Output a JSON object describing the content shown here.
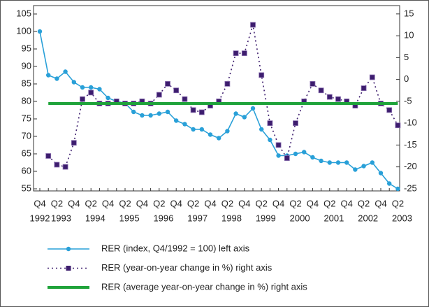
{
  "chart_data": {
    "type": "line",
    "categories": [
      "Q4",
      null,
      "Q2",
      null,
      "Q4",
      null,
      "Q2",
      null,
      "Q4",
      null,
      "Q2",
      null,
      "Q4",
      null,
      "Q2",
      null,
      "Q4",
      null,
      "Q2",
      null,
      "Q4",
      null,
      "Q2",
      null,
      "Q4",
      null,
      "Q2",
      null,
      "Q4",
      null,
      "Q2",
      null,
      "Q4",
      null,
      "Q2",
      null,
      "Q4",
      null,
      "Q2",
      null,
      "Q4",
      null,
      "Q2"
    ],
    "year_labels": [
      "1992",
      "1993",
      "1994",
      "1995",
      "1996",
      "1997",
      "1998",
      "1999",
      "2000",
      "2001",
      "2002",
      "2003"
    ],
    "ylim": [
      54.4,
      107.4
    ],
    "yticks": [
      55,
      60,
      65,
      70,
      75,
      80,
      85,
      90,
      95,
      100,
      105
    ],
    "y2lim": [
      -25.5,
      16.9
    ],
    "y2ticks": [
      -25,
      -20,
      -15,
      -10,
      -5,
      0,
      5,
      10,
      15
    ],
    "series": [
      {
        "name": "RER (index, Q4/1992 = 100) left axis",
        "color": "#29a0d8",
        "marker": "circle",
        "axis": "y",
        "values": [
          100,
          87.5,
          86.5,
          88.5,
          85.5,
          84,
          84,
          83.5,
          81,
          80,
          79.5,
          77,
          76,
          76,
          76.5,
          77,
          74.5,
          73.5,
          72,
          72,
          70.5,
          69.5,
          71.5,
          76.5,
          75.5,
          78,
          72,
          69,
          64.5,
          64.5,
          65,
          65.5,
          64,
          63,
          62.5,
          62.5,
          62.5,
          60.5,
          61.5,
          62.5,
          59.5,
          56.5,
          55
        ]
      },
      {
        "name": "RER (year-on-year change in %) right axis",
        "color": "#3d1d6e",
        "marker": "square",
        "dash": true,
        "axis": "y2",
        "values": [
          null,
          -17.5,
          -19.5,
          -20,
          -14.5,
          -4.5,
          -3,
          -5.5,
          -5.5,
          -5,
          -5.5,
          -5.5,
          -5,
          -5.5,
          -3.5,
          -1,
          -2.5,
          -4.5,
          -7,
          -7.5,
          -6,
          -5,
          -1,
          6,
          6,
          12.5,
          1,
          -10,
          -15,
          -18,
          -10,
          -5,
          -1,
          -2.5,
          -4,
          -4.5,
          -5,
          -6,
          -2,
          0.5,
          -5.5,
          -7,
          -10.5
        ]
      },
      {
        "name": "RER (average year-on-year change in %) right axis",
        "color": "#1fa33a",
        "marker": "none",
        "width": 4,
        "axis": "y2",
        "values": [
          null,
          -5.5,
          -5.5,
          -5.5,
          -5.5,
          -5.5,
          -5.5,
          -5.5,
          -5.5,
          -5.5,
          -5.5,
          -5.5,
          -5.5,
          -5.5,
          -5.5,
          -5.5,
          -5.5,
          -5.5,
          -5.5,
          -5.5,
          -5.5,
          -5.5,
          -5.5,
          -5.5,
          -5.5,
          -5.5,
          -5.5,
          -5.5,
          -5.5,
          -5.5,
          -5.5,
          -5.5,
          -5.5,
          -5.5,
          -5.5,
          -5.5,
          -5.5,
          -5.5,
          -5.5,
          -5.5,
          -5.5,
          -5.5,
          -5.5
        ]
      }
    ]
  }
}
